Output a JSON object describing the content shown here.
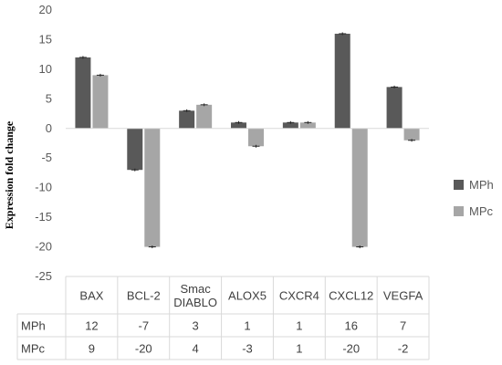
{
  "chart_data": {
    "type": "bar",
    "categories": [
      "BAX",
      "BCL-2",
      "Smac DIABLO",
      "ALOX5",
      "CXCR4",
      "CXCL12",
      "VEGFA"
    ],
    "category_lines": [
      [
        "BAX"
      ],
      [
        "BCL-2"
      ],
      [
        "Smac",
        "DIABLO"
      ],
      [
        "ALOX5"
      ],
      [
        "CXCR4"
      ],
      [
        "CXCL12"
      ],
      [
        "VEGFA"
      ]
    ],
    "series": [
      {
        "name": "MPh",
        "values": [
          12,
          -7,
          3,
          1,
          1,
          16,
          7
        ],
        "color": "#595959"
      },
      {
        "name": "MPc",
        "values": [
          9,
          -20,
          4,
          -3,
          1,
          -20,
          -2
        ],
        "color": "#a6a6a6"
      }
    ],
    "ylabel": "Expression fold change",
    "ylim": [
      -25,
      20
    ],
    "yticks": [
      20,
      15,
      10,
      5,
      0,
      -5,
      -10,
      -15,
      -20,
      -25
    ],
    "legend_position": "right",
    "grid": false,
    "data_table": true,
    "error_bars": true
  }
}
